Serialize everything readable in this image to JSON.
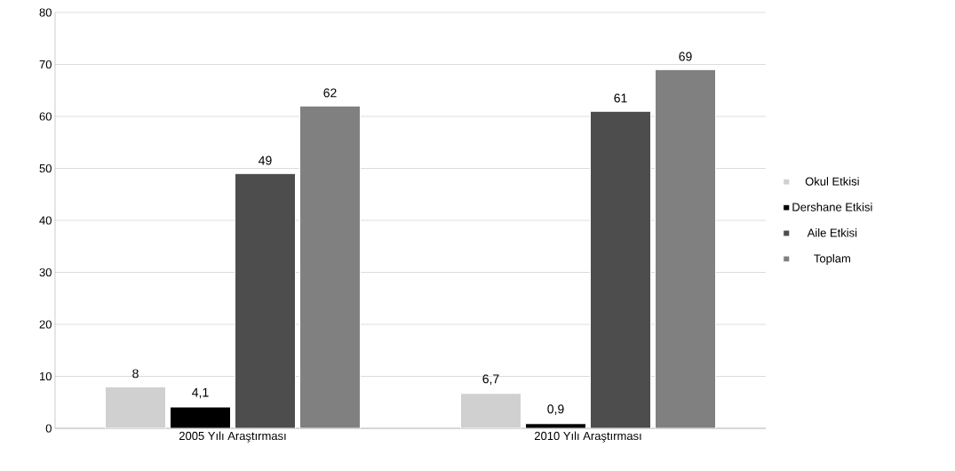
{
  "chart_data": {
    "type": "bar",
    "categories": [
      "2005 Yılı Araştırması",
      "2010 Yılı Araştırması"
    ],
    "series": [
      {
        "name": "Okul Etkisi",
        "color": "#d0d0d0",
        "values": [
          8,
          6.7
        ],
        "value_labels": [
          "8",
          "6,7"
        ]
      },
      {
        "name": "Dershane Etkisi",
        "color": "#000000",
        "values": [
          4.1,
          0.9
        ],
        "value_labels": [
          "4,1",
          "0,9"
        ]
      },
      {
        "name": "Aile Etkisi",
        "color": "#4d4d4d",
        "values": [
          49,
          61
        ],
        "value_labels": [
          "49",
          "61"
        ]
      },
      {
        "name": "Toplam",
        "color": "#808080",
        "values": [
          62,
          69
        ],
        "value_labels": [
          "62",
          "69"
        ]
      }
    ],
    "ylim": [
      0,
      80
    ],
    "yticks": [
      0,
      10,
      20,
      30,
      40,
      50,
      60,
      70,
      80
    ],
    "grid": "y",
    "legend": "right"
  }
}
